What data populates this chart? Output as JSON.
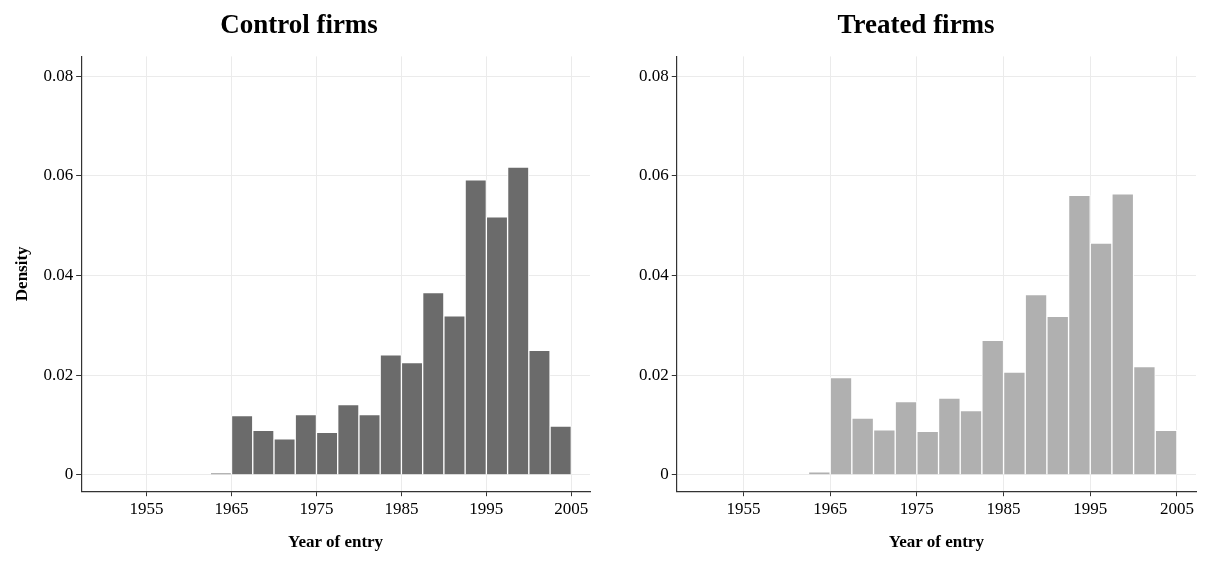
{
  "chart_data": [
    {
      "type": "histogram",
      "title": "Control firms",
      "xlabel": "Year of entry",
      "ylabel": "Density",
      "color": "#6b6b6b",
      "grid": true,
      "bins": [
        1950,
        1952.5,
        1955,
        1957.5,
        1960,
        1962.5,
        1965,
        1967.5,
        1970,
        1972.5,
        1975,
        1977.5,
        1980,
        1982.5,
        1985,
        1987.5,
        1990,
        1992.5,
        1995,
        1997.5,
        2000,
        2002.5,
        2005
      ],
      "values": [
        0,
        0,
        null,
        0,
        0,
        0.0003,
        0.0119,
        0.0089,
        0.0072,
        0.0121,
        0.0085,
        0.0141,
        0.0121,
        0.0241,
        0.0225,
        0.0366,
        0.0319,
        0.0592,
        0.0518,
        0.0618,
        0.025,
        0.0098
      ],
      "xlim": [
        1947.3,
        2007.2
      ],
      "xticks": [
        1955,
        1965,
        1975,
        1985,
        1995,
        2005
      ],
      "ylim": [
        -0.0033,
        0.084
      ],
      "yticks": [
        0,
        0.02,
        0.04,
        0.06,
        0.08
      ]
    },
    {
      "type": "histogram",
      "title": "Treated firms",
      "xlabel": "Year of entry",
      "color": "#b0b0b0",
      "grid": true,
      "bins": [
        1950,
        1952.5,
        1955,
        1957.5,
        1960,
        1962.5,
        1965,
        1967.5,
        1970,
        1972.5,
        1975,
        1977.5,
        1980,
        1982.5,
        1985,
        1987.5,
        1990,
        1992.5,
        1995,
        1997.5,
        2000,
        2002.5,
        2005
      ],
      "values": [
        0,
        0,
        null,
        0,
        0,
        0.0006,
        0.0195,
        0.0114,
        0.009,
        0.0147,
        0.0087,
        0.0154,
        0.0129,
        0.027,
        0.0206,
        0.0362,
        0.0318,
        0.0561,
        0.0465,
        0.0564,
        0.0217,
        0.0089
      ],
      "xlim": [
        1947.3,
        2007.2
      ],
      "xticks": [
        1955,
        1965,
        1975,
        1985,
        1995,
        2005
      ],
      "ylim": [
        -0.0033,
        0.084
      ],
      "yticks": [
        0,
        0.02,
        0.04,
        0.06,
        0.08
      ]
    }
  ]
}
